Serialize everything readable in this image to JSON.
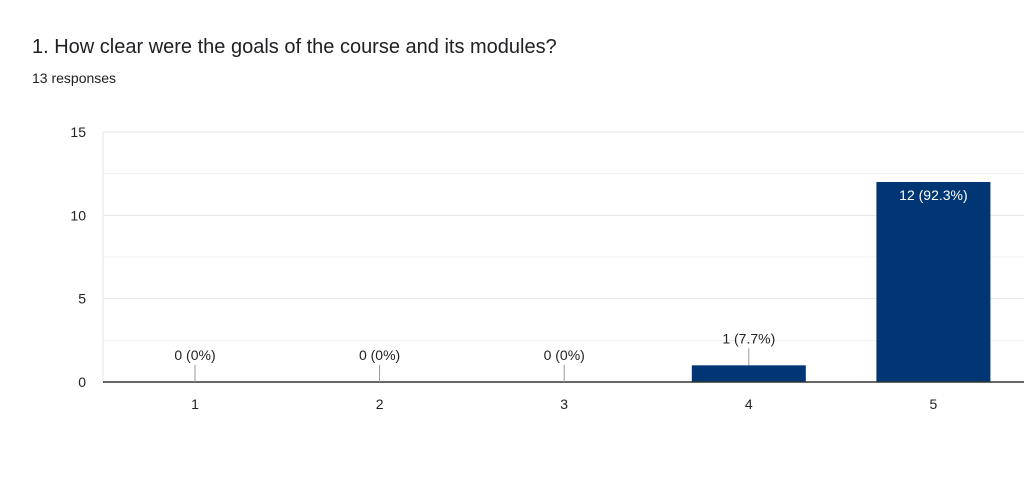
{
  "question": {
    "title": "1. How clear were the goals of the course and its modules?",
    "responses": "13 responses"
  },
  "colors": {
    "bar": "#003673",
    "grid": "#e6e6e6",
    "axis": "#333333",
    "label_inside": "#ffffff",
    "label_outside": "#222222",
    "leader": "#999999"
  },
  "chart_data": {
    "type": "bar",
    "categories": [
      "1",
      "2",
      "3",
      "4",
      "5"
    ],
    "values": [
      0,
      0,
      0,
      1,
      12
    ],
    "data_labels": [
      "0 (0%)",
      "0 (0%)",
      "0 (0%)",
      "1 (7.7%)",
      "12 (92.3%)"
    ],
    "y_ticks": [
      0,
      5,
      10,
      15
    ],
    "ylim": [
      0,
      15
    ],
    "grid": true,
    "legend": "none"
  }
}
